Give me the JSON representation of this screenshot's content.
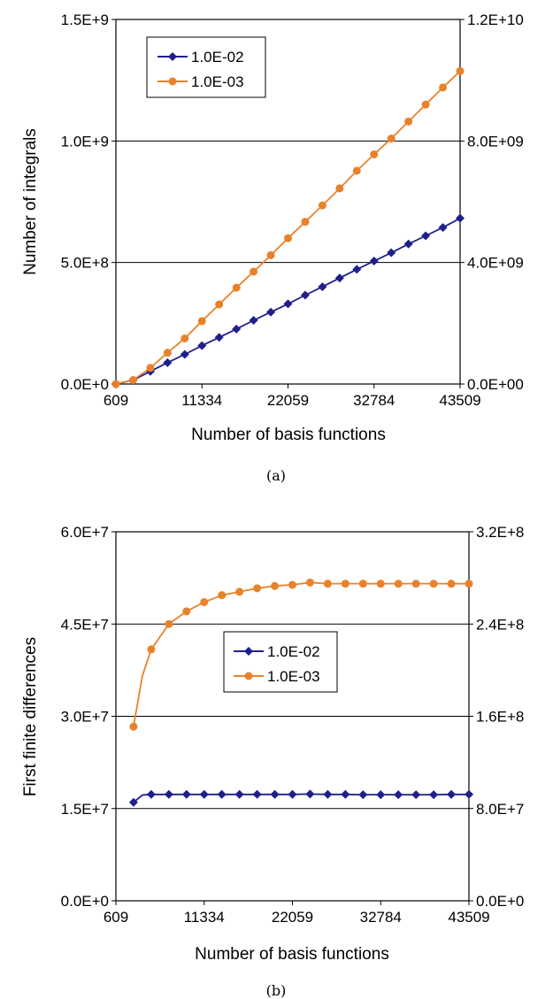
{
  "chart_data": [
    {
      "panel": "a",
      "caption": "(a)",
      "type": "line",
      "xlabel": "Number of basis functions",
      "ylabel": "Number of integrals",
      "x_ticks": [
        "609",
        "11334",
        "22059",
        "32784",
        "43509"
      ],
      "xlim": [
        609,
        43509
      ],
      "y_left_ticks": [
        "0.0E+0",
        "5.0E+8",
        "1.0E+9",
        "1.5E+9"
      ],
      "ylim_left": [
        0,
        1500000000
      ],
      "y_right_ticks": [
        "0.0E+00",
        "4.0E+09",
        "8.0E+09",
        "1.2E+10"
      ],
      "ylim_right": [
        0,
        12000000000
      ],
      "grid": "horizontal",
      "legend_position": "top-left",
      "x": [
        609,
        2754,
        4899,
        7044,
        9189,
        11334,
        13479,
        15624,
        17769,
        19914,
        22059,
        24204,
        26349,
        28494,
        30639,
        32784,
        34929,
        37074,
        39219,
        41364,
        43509
      ],
      "series": [
        {
          "name": "1.0E-02",
          "axis": "left",
          "color": "#1f1f8c",
          "marker": "diamond",
          "values": [
            0,
            16000000,
            52000000,
            88000000,
            122000000,
            158000000,
            192000000,
            226000000,
            262000000,
            296000000,
            330000000,
            366000000,
            400000000,
            436000000,
            472000000,
            506000000,
            540000000,
            576000000,
            610000000,
            644000000,
            682000000
          ]
        },
        {
          "name": "1.0E-03",
          "axis": "right",
          "color": "#e8822a",
          "marker": "circle",
          "values": [
            0,
            130000000,
            530000000,
            1030000000,
            1500000000,
            2070000000,
            2620000000,
            3170000000,
            3700000000,
            4240000000,
            4800000000,
            5340000000,
            5880000000,
            6440000000,
            7020000000,
            7560000000,
            8080000000,
            8640000000,
            9200000000,
            9760000000,
            10300000000
          ]
        }
      ]
    },
    {
      "panel": "b",
      "caption": "(b)",
      "type": "line",
      "xlabel": "Number of basis functions",
      "ylabel": "First finite differences",
      "x_ticks": [
        "609",
        "11334",
        "22059",
        "32784",
        "43509"
      ],
      "xlim": [
        609,
        43509
      ],
      "y_left_ticks": [
        "0.0E+0",
        "1.5E+7",
        "3.0E+7",
        "4.5E+7",
        "6.0E+7"
      ],
      "ylim_left": [
        0,
        60000000
      ],
      "y_right_ticks": [
        "0.0E+0",
        "8.0E+7",
        "1.6E+8",
        "2.4E+8",
        "3.2E+8"
      ],
      "ylim_right": [
        0,
        320000000
      ],
      "grid": "horizontal",
      "legend_position": "center",
      "x_1e02": [
        2754,
        3826,
        4899,
        7044,
        9189,
        11334,
        13479,
        15624,
        17769,
        19914,
        22059,
        24204,
        26349,
        28494,
        30639,
        32784,
        34929,
        37074,
        39219,
        41364,
        43509
      ],
      "x_1e03": [
        2754,
        3826,
        4899,
        7044,
        9189,
        11334,
        13479,
        15624,
        17769,
        19914,
        22059,
        24204,
        26349,
        28494,
        30639,
        32784,
        34929,
        37074,
        39219,
        41364,
        43509
      ],
      "series": [
        {
          "name": "1.0E-02",
          "axis": "left",
          "color": "#1f1f8c",
          "marker": "diamond",
          "marker_indices": [
            0,
            2,
            3,
            4,
            5,
            6,
            7,
            8,
            9,
            10,
            11,
            12,
            13,
            14,
            15,
            16,
            17,
            18,
            19,
            20
          ],
          "values": [
            16000000,
            17200000,
            17300000,
            17300000,
            17300000,
            17300000,
            17300000,
            17300000,
            17300000,
            17300000,
            17300000,
            17350000,
            17300000,
            17300000,
            17250000,
            17250000,
            17250000,
            17250000,
            17250000,
            17300000,
            17300000
          ]
        },
        {
          "name": "1.0E-03",
          "axis": "right",
          "color": "#e8822a",
          "marker": "circle",
          "marker_indices": [
            0,
            2,
            3,
            4,
            5,
            6,
            7,
            8,
            9,
            10,
            11,
            12,
            13,
            14,
            15,
            16,
            17,
            18,
            19,
            20
          ],
          "values": [
            151000000,
            195000000,
            218000000,
            240000000,
            251000000,
            259000000,
            265000000,
            268000000,
            271000000,
            273000000,
            274000000,
            276000000,
            275000000,
            275000000,
            275000000,
            275000000,
            275000000,
            275000000,
            275000000,
            275000000,
            275000000
          ]
        }
      ]
    }
  ]
}
